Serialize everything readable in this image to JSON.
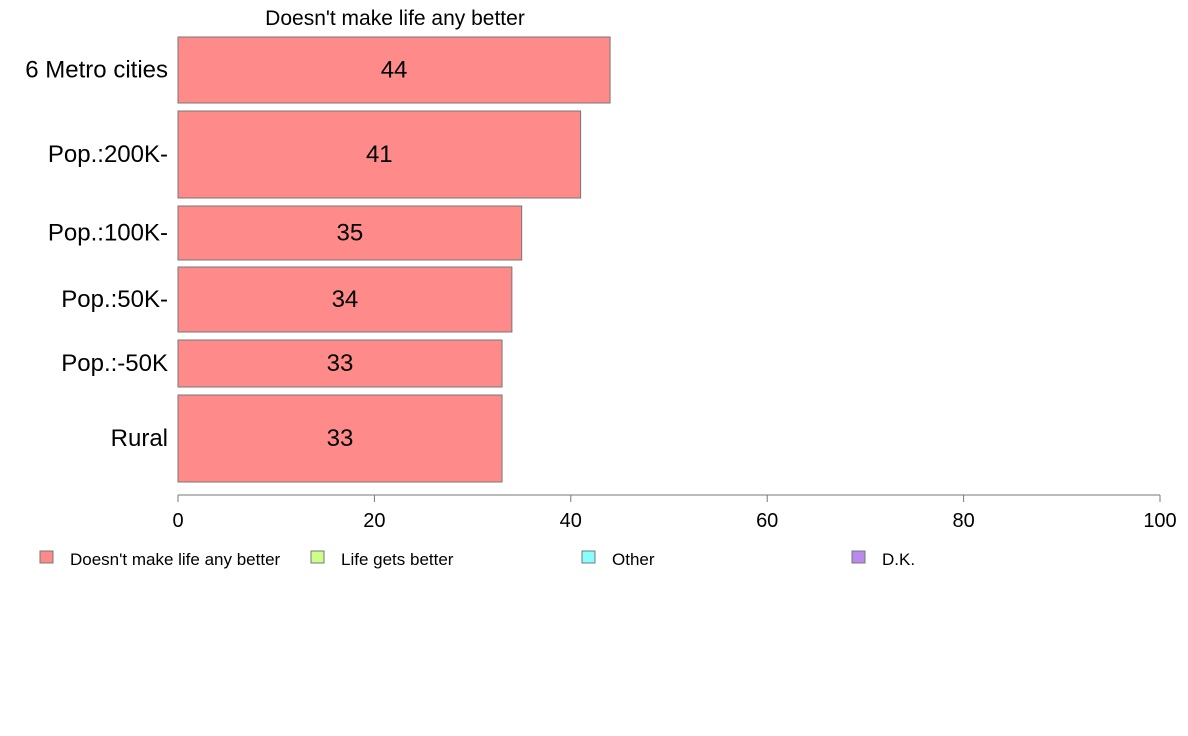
{
  "chart_data": {
    "type": "bar",
    "orientation": "horizontal",
    "title": "Doesn't make life any better",
    "categories": [
      "6 Metro cities",
      "Pop.:200K-",
      "Pop.:100K-",
      "Pop.:50K-",
      "Pop.:-50K",
      "Rural"
    ],
    "values": [
      44,
      41,
      35,
      34,
      33,
      33
    ],
    "value_labels": [
      "44",
      "41",
      "35",
      "34",
      "33",
      "33"
    ],
    "xlim": [
      0,
      100
    ],
    "xticks": [
      0,
      20,
      40,
      60,
      80,
      100
    ],
    "xtick_labels": [
      "0",
      "20",
      "40",
      "60",
      "80",
      "100"
    ],
    "grid": false,
    "bar_color": "#ff8a8a",
    "legend_position": "bottom",
    "legend": [
      {
        "label": "Doesn't make life any better",
        "color": "#ff8a8a"
      },
      {
        "label": "Life gets better",
        "color": "#ccff88"
      },
      {
        "label": "Other",
        "color": "#88ffff"
      },
      {
        "label": "D.K.",
        "color": "#bb88ee"
      }
    ]
  }
}
